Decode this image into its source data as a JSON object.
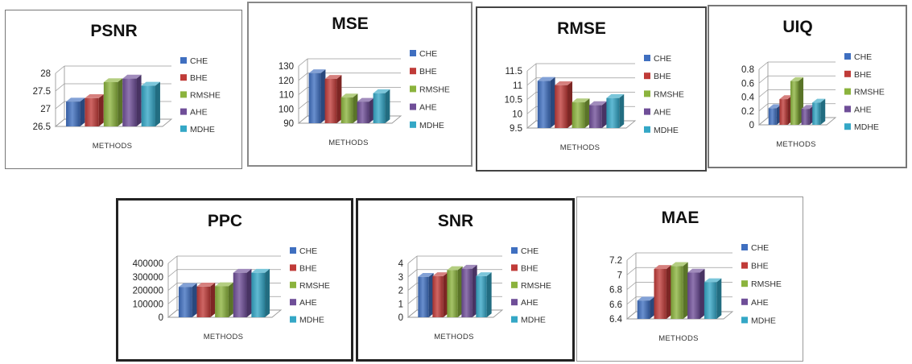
{
  "chart_data": [
    {
      "type": "bar",
      "title": "PSNR",
      "xlabel": "METHODS",
      "ylabel": "",
      "ylim": [
        26.5,
        28
      ],
      "yticks": [
        "28",
        "27.5",
        "27",
        "26.5"
      ],
      "series": [
        {
          "name": "CHE",
          "values": [
            27.2
          ]
        },
        {
          "name": "BHE",
          "values": [
            27.3
          ]
        },
        {
          "name": "RMSHE",
          "values": [
            27.75
          ]
        },
        {
          "name": "AHE",
          "values": [
            27.85
          ]
        },
        {
          "name": "MDHE",
          "values": [
            27.65
          ]
        }
      ],
      "legend": "right",
      "grid": true
    },
    {
      "type": "bar",
      "title": "MSE",
      "xlabel": "METHODS",
      "ylabel": "",
      "ylim": [
        90,
        130
      ],
      "yticks": [
        "130",
        "120",
        "110",
        "100",
        "90"
      ],
      "series": [
        {
          "name": "CHE",
          "values": [
            125
          ]
        },
        {
          "name": "BHE",
          "values": [
            121
          ]
        },
        {
          "name": "RMSHE",
          "values": [
            108
          ]
        },
        {
          "name": "AHE",
          "values": [
            105
          ]
        },
        {
          "name": "MDHE",
          "values": [
            111
          ]
        }
      ],
      "legend": "right",
      "grid": true
    },
    {
      "type": "bar",
      "title": "RMSE",
      "xlabel": "METHODS",
      "ylabel": "",
      "ylim": [
        9.5,
        11.5
      ],
      "yticks": [
        "11.5",
        "11",
        "10.5",
        "10",
        "9.5"
      ],
      "series": [
        {
          "name": "CHE",
          "values": [
            11.15
          ]
        },
        {
          "name": "BHE",
          "values": [
            11.0
          ]
        },
        {
          "name": "RMSHE",
          "values": [
            10.4
          ]
        },
        {
          "name": "AHE",
          "values": [
            10.3
          ]
        },
        {
          "name": "MDHE",
          "values": [
            10.55
          ]
        }
      ],
      "legend": "right",
      "grid": true
    },
    {
      "type": "bar",
      "title": "UIQ",
      "xlabel": "METHODS",
      "ylabel": "",
      "ylim": [
        0,
        0.8
      ],
      "yticks": [
        "0.8",
        "0.6",
        "0.4",
        "0.2",
        "0"
      ],
      "series": [
        {
          "name": "CHE",
          "values": [
            0.24
          ]
        },
        {
          "name": "BHE",
          "values": [
            0.37
          ]
        },
        {
          "name": "RMSHE",
          "values": [
            0.63
          ]
        },
        {
          "name": "AHE",
          "values": [
            0.23
          ]
        },
        {
          "name": "MDHE",
          "values": [
            0.32
          ]
        }
      ],
      "legend": "right",
      "grid": true
    },
    {
      "type": "bar",
      "title": "PPC",
      "xlabel": "METHODS",
      "ylabel": "",
      "ylim": [
        0,
        400000
      ],
      "yticks": [
        "400000",
        "300000",
        "200000",
        "100000",
        "0"
      ],
      "series": [
        {
          "name": "CHE",
          "values": [
            225000
          ]
        },
        {
          "name": "BHE",
          "values": [
            228000
          ]
        },
        {
          "name": "RMSHE",
          "values": [
            230000
          ]
        },
        {
          "name": "AHE",
          "values": [
            330000
          ]
        },
        {
          "name": "MDHE",
          "values": [
            330000
          ]
        }
      ],
      "legend": "right",
      "grid": true
    },
    {
      "type": "bar",
      "title": "SNR",
      "xlabel": "METHODS",
      "ylabel": "",
      "ylim": [
        0,
        4
      ],
      "yticks": [
        "4",
        "3",
        "2",
        "1",
        "0"
      ],
      "series": [
        {
          "name": "CHE",
          "values": [
            3.0
          ]
        },
        {
          "name": "BHE",
          "values": [
            3.05
          ]
        },
        {
          "name": "RMSHE",
          "values": [
            3.5
          ]
        },
        {
          "name": "AHE",
          "values": [
            3.6
          ]
        },
        {
          "name": "MDHE",
          "values": [
            3.05
          ]
        }
      ],
      "legend": "right",
      "grid": true
    },
    {
      "type": "bar",
      "title": "MAE",
      "xlabel": "METHODS",
      "ylabel": "",
      "ylim": [
        6.4,
        7.2
      ],
      "yticks": [
        "7.2",
        "7",
        "6.8",
        "6.6",
        "6.4"
      ],
      "series": [
        {
          "name": "CHE",
          "values": [
            6.65
          ]
        },
        {
          "name": "BHE",
          "values": [
            7.08
          ]
        },
        {
          "name": "RMSHE",
          "values": [
            7.12
          ]
        },
        {
          "name": "AHE",
          "values": [
            7.03
          ]
        },
        {
          "name": "MDHE",
          "values": [
            6.9
          ]
        }
      ],
      "legend": "right",
      "grid": true
    }
  ],
  "colors": {
    "CHE": "#3f6fc0",
    "BHE": "#c03b38",
    "RMSHE": "#8bb33d",
    "AHE": "#6f4e98",
    "MDHE": "#34a7c6",
    "border": "#666666",
    "border_dark": "#222222",
    "grid": "#9a9a9a"
  }
}
